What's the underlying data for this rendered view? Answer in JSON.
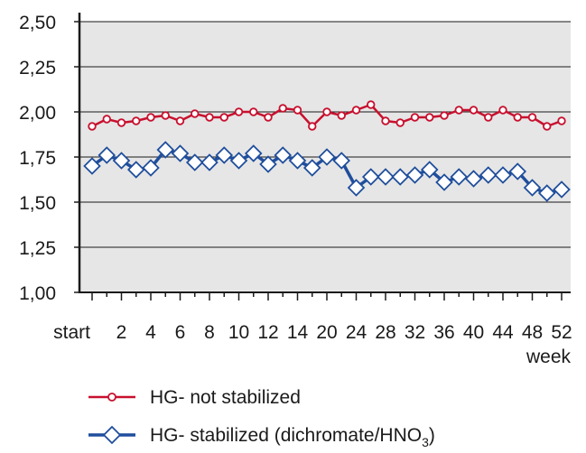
{
  "chart_data": {
    "type": "line",
    "xlabel": "week",
    "ylabel": "",
    "ylim": [
      1.0,
      2.5
    ],
    "yticks": [
      "1,00",
      "1,25",
      "1,50",
      "1,75",
      "2,00",
      "2,25",
      "2,50"
    ],
    "ytick_values": [
      1.0,
      1.25,
      1.5,
      1.75,
      2.0,
      2.25,
      2.5
    ],
    "xtick_labels": [
      "start",
      "2",
      "4",
      "6",
      "8",
      "10",
      "12",
      "14",
      "20",
      "24",
      "28",
      "32",
      "36",
      "40",
      "44",
      "48",
      "52"
    ],
    "grid": true,
    "legend_position": "bottom",
    "series": [
      {
        "name": "HG- not stabilized",
        "color": "#c8102e",
        "marker": "circle",
        "values": [
          1.92,
          1.96,
          1.94,
          1.95,
          1.97,
          1.98,
          1.95,
          1.99,
          1.97,
          1.97,
          2.0,
          2.0,
          1.97,
          2.02,
          2.01,
          1.92,
          2.0,
          1.98,
          2.01,
          2.04,
          1.95,
          1.94,
          1.97,
          1.97,
          1.98,
          2.01,
          2.01,
          1.97,
          2.01,
          1.97,
          1.97,
          1.92,
          1.95
        ]
      },
      {
        "name": "HG- stabilized (dichromate/HNO3)",
        "color": "#1f4e9c",
        "marker": "diamond",
        "values": [
          1.7,
          1.76,
          1.73,
          1.68,
          1.69,
          1.79,
          1.77,
          1.72,
          1.72,
          1.76,
          1.73,
          1.77,
          1.71,
          1.76,
          1.73,
          1.69,
          1.75,
          1.73,
          1.58,
          1.64,
          1.64,
          1.64,
          1.65,
          1.68,
          1.61,
          1.64,
          1.63,
          1.65,
          1.65,
          1.67,
          1.58,
          1.55,
          1.57
        ]
      }
    ]
  },
  "legend": {
    "item1_label": "HG- not stabilized",
    "item2_label_main": "HG- stabilized (dichromate/HNO",
    "item2_label_sub": "3",
    "item2_label_end": ")"
  }
}
